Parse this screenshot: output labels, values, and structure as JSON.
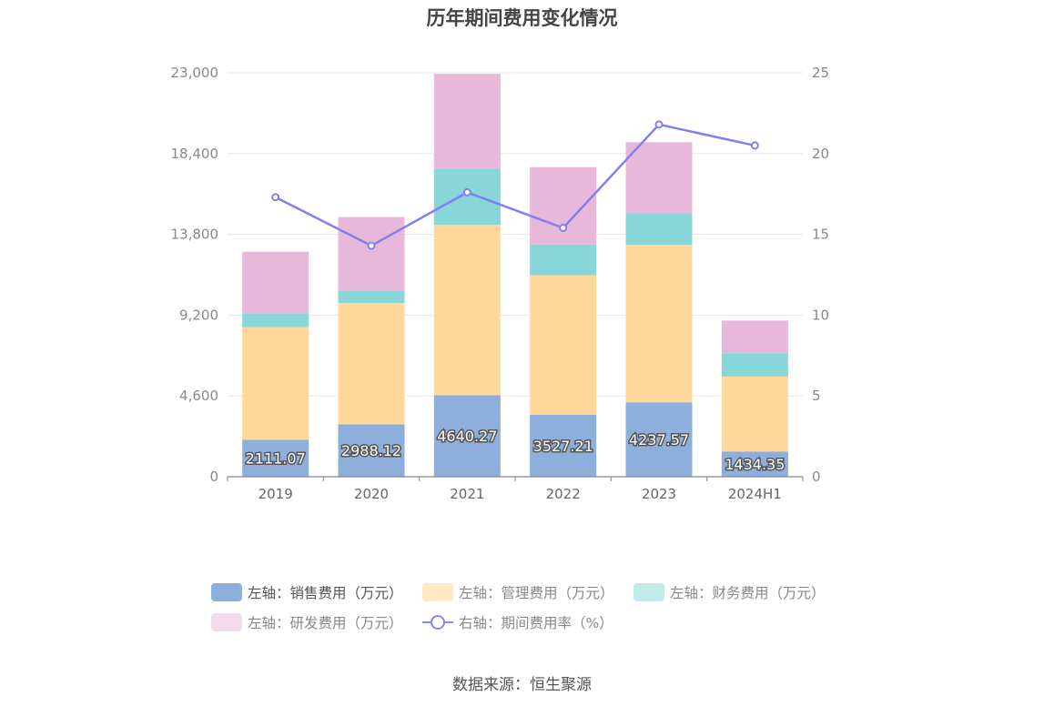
{
  "title": "历年期间费用变化情况",
  "source": "数据来源：恒生聚源",
  "chart_data": {
    "type": "bar",
    "stacked": true,
    "categories": [
      "2019",
      "2020",
      "2021",
      "2022",
      "2023",
      "2024H1"
    ],
    "left_axis": {
      "min": 0,
      "max": 23000,
      "ticks": [
        "0",
        "4,600",
        "9,200",
        "13,800",
        "18,400",
        "23,000"
      ]
    },
    "right_axis": {
      "min": 0,
      "max": 25,
      "ticks": [
        "0",
        "5",
        "10",
        "15",
        "20",
        "25"
      ]
    },
    "grid": true,
    "legend_position": "bottom",
    "series": [
      {
        "name": "左轴：销售费用（万元）",
        "axis": "left",
        "kind": "bar",
        "color": "#8eaedc",
        "values": [
          2111.07,
          2988.12,
          4640.27,
          3527.21,
          4237.57,
          1434.35
        ],
        "labels": [
          "2111.07",
          "2988.12",
          "4640.27",
          "3527.21",
          "4237.57",
          "1434.35"
        ]
      },
      {
        "name": "左轴：管理费用（万元）",
        "axis": "left",
        "kind": "bar",
        "color": "#ffd89a",
        "values": [
          6400,
          6900,
          9700,
          7950,
          8960,
          4270
        ]
      },
      {
        "name": "左轴：财务费用（万元）",
        "axis": "left",
        "kind": "bar",
        "color": "#88d6d9",
        "values": [
          800,
          700,
          3200,
          1750,
          1800,
          1330
        ]
      },
      {
        "name": "左轴：研发费用（万元）",
        "axis": "left",
        "kind": "bar",
        "color": "#e8b8da",
        "values": [
          3500,
          4200,
          5400,
          4400,
          4050,
          1860
        ]
      },
      {
        "name": "右轴：期间费用率（%）",
        "axis": "right",
        "kind": "line",
        "color": "#8080ee",
        "values": [
          17.3,
          14.3,
          17.6,
          15.4,
          21.8,
          20.5
        ]
      }
    ]
  }
}
